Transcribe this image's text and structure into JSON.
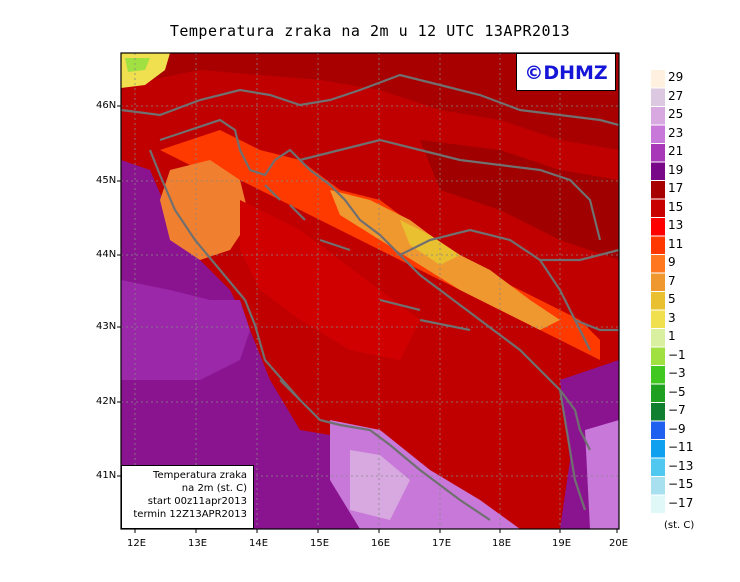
{
  "title": "Temperatura zraka na 2m u 12 UTC 13APR2013",
  "logo": "©DHMZ",
  "info_box": {
    "line1": "Temperatura zraka",
    "line2": "na 2m (st. C)",
    "line3": "start 00z11apr2013",
    "line4": "termin 12Z13APR2013"
  },
  "lat_labels": [
    "46N",
    "45N",
    "44N",
    "43N",
    "42N",
    "41N"
  ],
  "lon_labels": [
    "12E",
    "13E",
    "14E",
    "15E",
    "16E",
    "17E",
    "18E",
    "19E",
    "20E"
  ],
  "colorbar": {
    "labels": [
      "29",
      "27",
      "25",
      "23",
      "21",
      "19",
      "17",
      "15",
      "13",
      "11",
      "9",
      "7",
      "5",
      "3",
      "1",
      "−1",
      "−3",
      "−5",
      "−7",
      "−9",
      "−11",
      "−13",
      "−15",
      "−17"
    ],
    "colors": [
      "#fff0e0",
      "#dcc8e0",
      "#d8a8e0",
      "#c878d8",
      "#a838b8",
      "#780888",
      "#a80000",
      "#c80000",
      "#ff0000",
      "#ff3800",
      "#ff7820",
      "#f09830",
      "#e8c030",
      "#f0e050",
      "#d8f0a0",
      "#a0e040",
      "#40c820",
      "#20a020",
      "#108030",
      "#2060f0",
      "#10a0f0",
      "#50c8f0",
      "#a8e0f0",
      "#e0f8f8"
    ],
    "unit": "(st. C)"
  }
}
